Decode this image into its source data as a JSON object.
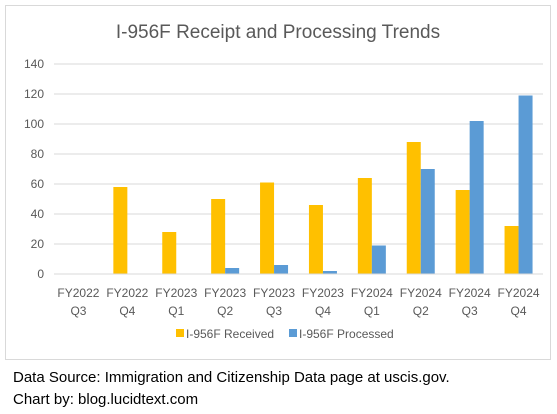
{
  "chart_data": {
    "type": "bar",
    "title": "I-956F Receipt and Processing Trends",
    "xlabel": "",
    "ylabel": "",
    "categories": [
      [
        "FY2022",
        "Q3"
      ],
      [
        "FY2022",
        "Q4"
      ],
      [
        "FY2023",
        "Q1"
      ],
      [
        "FY2023",
        "Q2"
      ],
      [
        "FY2023",
        "Q3"
      ],
      [
        "FY2023",
        "Q4"
      ],
      [
        "FY2024",
        "Q1"
      ],
      [
        "FY2024",
        "Q2"
      ],
      [
        "FY2024",
        "Q3"
      ],
      [
        "FY2024",
        "Q4"
      ]
    ],
    "series": [
      {
        "name": "I-956F Received",
        "color": "#ffc000",
        "values": [
          0,
          58,
          28,
          50,
          61,
          46,
          64,
          88,
          56,
          32
        ]
      },
      {
        "name": "I-956F Processed",
        "color": "#5b9bd5",
        "values": [
          0,
          0,
          0,
          4,
          6,
          2,
          19,
          70,
          102,
          119
        ]
      }
    ],
    "ylim": [
      0,
      140
    ],
    "yticks": [
      0,
      20,
      40,
      60,
      80,
      100,
      120,
      140
    ],
    "grid": true,
    "legend": "bottom"
  },
  "caption": {
    "source": "Data Source: Immigration and Citizenship Data page at uscis.gov.",
    "credit": "Chart by: blog.lucidtext.com"
  }
}
